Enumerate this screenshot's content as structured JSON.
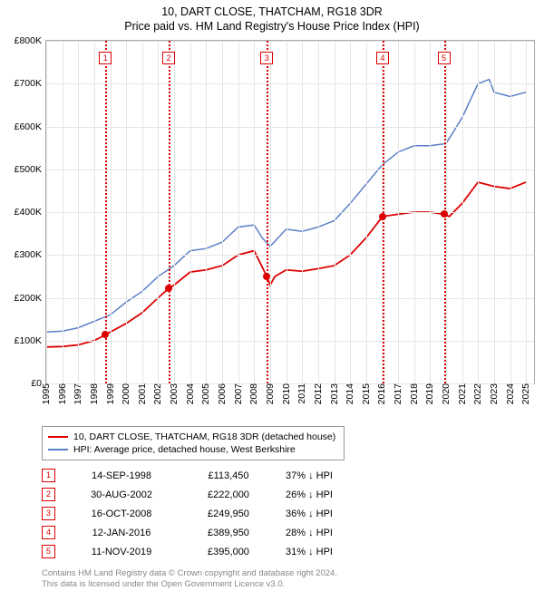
{
  "header": {
    "title": "10, DART CLOSE, THATCHAM, RG18 3DR",
    "subtitle": "Price paid vs. HM Land Registry's House Price Index (HPI)"
  },
  "chart": {
    "type": "line",
    "xlim": [
      1995,
      2025.5
    ],
    "ylim": [
      0,
      800000
    ],
    "ytick_step": 100000,
    "yticks": [
      "£0",
      "£100K",
      "£200K",
      "£300K",
      "£400K",
      "£500K",
      "£600K",
      "£700K",
      "£800K"
    ],
    "xticks": [
      1995,
      1996,
      1997,
      1998,
      1999,
      2000,
      2001,
      2002,
      2003,
      2004,
      2005,
      2006,
      2007,
      2008,
      2009,
      2010,
      2011,
      2012,
      2013,
      2014,
      2015,
      2016,
      2017,
      2018,
      2019,
      2020,
      2021,
      2022,
      2023,
      2024,
      2025
    ],
    "background_color": "#ffffff",
    "grid_color": "#e5e5e5",
    "series": {
      "property": {
        "color": "#dd0000",
        "width": 1.8,
        "label": "10, DART CLOSE, THATCHAM, RG18 3DR (detached house)",
        "points": [
          [
            1995,
            85000
          ],
          [
            1996,
            86000
          ],
          [
            1997,
            90000
          ],
          [
            1998,
            100000
          ],
          [
            1998.7,
            113450
          ],
          [
            1999,
            120000
          ],
          [
            2000,
            140000
          ],
          [
            2001,
            165000
          ],
          [
            2002,
            200000
          ],
          [
            2002.66,
            222000
          ],
          [
            2003,
            230000
          ],
          [
            2004,
            260000
          ],
          [
            2005,
            265000
          ],
          [
            2006,
            275000
          ],
          [
            2007,
            300000
          ],
          [
            2008,
            310000
          ],
          [
            2008.79,
            249950
          ],
          [
            2009,
            230000
          ],
          [
            2009.3,
            250000
          ],
          [
            2010,
            265000
          ],
          [
            2011,
            262000
          ],
          [
            2012,
            268000
          ],
          [
            2013,
            275000
          ],
          [
            2014,
            300000
          ],
          [
            2015,
            340000
          ],
          [
            2016.03,
            389950
          ],
          [
            2017,
            395000
          ],
          [
            2018,
            400000
          ],
          [
            2019,
            400000
          ],
          [
            2019.86,
            395000
          ],
          [
            2020.2,
            390000
          ],
          [
            2021,
            420000
          ],
          [
            2022,
            470000
          ],
          [
            2023,
            460000
          ],
          [
            2024,
            455000
          ],
          [
            2025,
            470000
          ]
        ]
      },
      "hpi": {
        "color": "#5b7fc7",
        "width": 1.5,
        "label": "HPI: Average price, detached house, West Berkshire",
        "points": [
          [
            1995,
            120000
          ],
          [
            1996,
            122000
          ],
          [
            1997,
            130000
          ],
          [
            1998,
            145000
          ],
          [
            1999,
            160000
          ],
          [
            2000,
            190000
          ],
          [
            2001,
            215000
          ],
          [
            2002,
            250000
          ],
          [
            2003,
            275000
          ],
          [
            2004,
            310000
          ],
          [
            2005,
            315000
          ],
          [
            2006,
            330000
          ],
          [
            2007,
            365000
          ],
          [
            2008,
            370000
          ],
          [
            2008.5,
            340000
          ],
          [
            2009,
            320000
          ],
          [
            2010,
            360000
          ],
          [
            2011,
            355000
          ],
          [
            2012,
            365000
          ],
          [
            2013,
            380000
          ],
          [
            2014,
            420000
          ],
          [
            2015,
            465000
          ],
          [
            2016,
            510000
          ],
          [
            2017,
            540000
          ],
          [
            2018,
            555000
          ],
          [
            2019,
            555000
          ],
          [
            2020,
            560000
          ],
          [
            2021,
            620000
          ],
          [
            2022,
            700000
          ],
          [
            2022.7,
            710000
          ],
          [
            2023,
            680000
          ],
          [
            2024,
            670000
          ],
          [
            2025,
            680000
          ]
        ]
      }
    },
    "transactions": [
      {
        "n": "1",
        "x": 1998.7,
        "price": 113450
      },
      {
        "n": "2",
        "x": 2002.66,
        "price": 222000
      },
      {
        "n": "3",
        "x": 2008.79,
        "price": 249950
      },
      {
        "n": "4",
        "x": 2016.03,
        "price": 389950
      },
      {
        "n": "5",
        "x": 2019.86,
        "price": 395000
      }
    ],
    "marker_box_color": "#dd0000",
    "vline_color": "#dd0000"
  },
  "legend": {
    "items": [
      {
        "color": "#dd0000",
        "label": "10, DART CLOSE, THATCHAM, RG18 3DR (detached house)"
      },
      {
        "color": "#5b7fc7",
        "label": "HPI: Average price, detached house, West Berkshire"
      }
    ]
  },
  "transactions_table": {
    "rows": [
      {
        "n": "1",
        "date": "14-SEP-1998",
        "price": "£113,450",
        "diff": "37% ↓ HPI"
      },
      {
        "n": "2",
        "date": "30-AUG-2002",
        "price": "£222,000",
        "diff": "26% ↓ HPI"
      },
      {
        "n": "3",
        "date": "16-OCT-2008",
        "price": "£249,950",
        "diff": "36% ↓ HPI"
      },
      {
        "n": "4",
        "date": "12-JAN-2016",
        "price": "£389,950",
        "diff": "28% ↓ HPI"
      },
      {
        "n": "5",
        "date": "11-NOV-2019",
        "price": "£395,000",
        "diff": "31% ↓ HPI"
      }
    ]
  },
  "footer": {
    "line1": "Contains HM Land Registry data © Crown copyright and database right 2024.",
    "line2": "This data is licensed under the Open Government Licence v3.0."
  }
}
